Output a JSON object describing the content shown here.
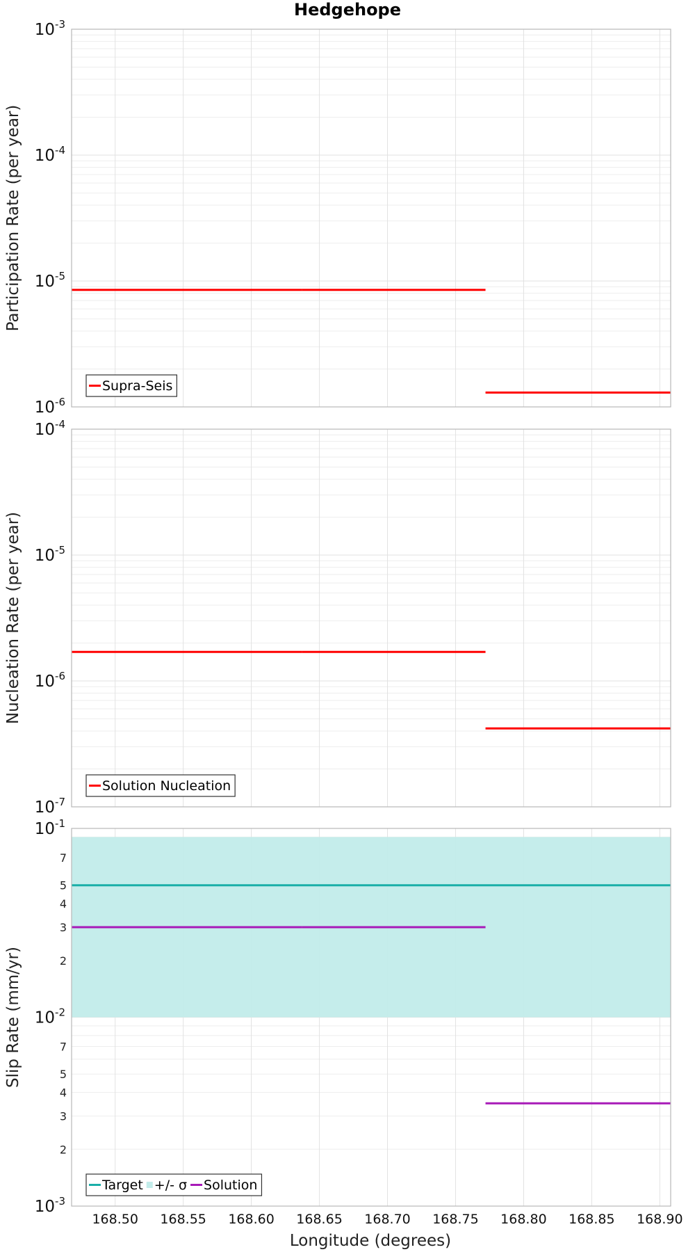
{
  "chart_data": {
    "title": "Hedgehope",
    "type": "line",
    "xlabel": "Longitude (degrees)",
    "xlim": [
      168.468,
      168.908
    ],
    "xticks": [
      "168.50",
      "168.55",
      "168.60",
      "168.65",
      "168.70",
      "168.75",
      "168.80",
      "168.85",
      "168.90"
    ],
    "panels": [
      {
        "ylabel": "Participation Rate (per year)",
        "yscale": "log",
        "ylim": [
          1e-06,
          0.001
        ],
        "yticks": [
          {
            "base": "10",
            "exp": "-3"
          },
          {
            "base": "10",
            "exp": "-4"
          },
          {
            "base": "10",
            "exp": "-5"
          },
          {
            "base": "10",
            "exp": "-6"
          }
        ],
        "minor_tick_labels": [],
        "legend": {
          "location": "bottom-left",
          "entries": [
            {
              "label": "Supra-Seis",
              "color": "#ff0000"
            }
          ]
        },
        "series": [
          {
            "name": "Supra-Seis",
            "color": "#ff0000",
            "segments": [
              {
                "x": [
                  168.468,
                  168.637
                ],
                "y": 8.5e-06
              },
              {
                "x": [
                  168.637,
                  168.772
                ],
                "y": 8.5e-06
              },
              {
                "x": [
                  168.772,
                  168.908
                ],
                "y": 1.3e-06
              }
            ]
          }
        ]
      },
      {
        "ylabel": "Nucleation Rate (per year)",
        "yscale": "log",
        "ylim": [
          1e-07,
          0.0001
        ],
        "yticks": [
          {
            "base": "10",
            "exp": "-4"
          },
          {
            "base": "10",
            "exp": "-5"
          },
          {
            "base": "10",
            "exp": "-6"
          },
          {
            "base": "10",
            "exp": "-7"
          }
        ],
        "minor_tick_labels": [],
        "legend": {
          "location": "bottom-left",
          "entries": [
            {
              "label": "Solution Nucleation",
              "color": "#ff0000"
            }
          ]
        },
        "series": [
          {
            "name": "Solution Nucleation",
            "color": "#ff0000",
            "segments": [
              {
                "x": [
                  168.468,
                  168.637
                ],
                "y": 1.7e-06
              },
              {
                "x": [
                  168.637,
                  168.772
                ],
                "y": 1.7e-06
              },
              {
                "x": [
                  168.772,
                  168.908
                ],
                "y": 4.2e-07
              }
            ]
          }
        ]
      },
      {
        "ylabel": "Slip Rate (mm/yr)",
        "yscale": "log",
        "ylim": [
          0.001,
          0.1
        ],
        "yticks": [
          {
            "base": "10",
            "exp": "-1"
          },
          {
            "base": "10",
            "exp": "-2"
          },
          {
            "base": "10",
            "exp": "-3"
          }
        ],
        "minor_tick_labels": [
          "7",
          "5",
          "4",
          "3",
          "2",
          "7",
          "5",
          "4",
          "3",
          "2"
        ],
        "legend": {
          "location": "bottom-left",
          "entries": [
            {
              "label": "Target",
              "color": "#1aaea8"
            },
            {
              "label": "+/- σ",
              "color": "#c2ecea"
            },
            {
              "label": "Solution",
              "color": "#a81ab8"
            }
          ]
        },
        "band": {
          "name": "+/- σ",
          "color": "#c2ecea",
          "x": [
            168.468,
            168.908
          ],
          "y": [
            0.01,
            0.09
          ]
        },
        "series": [
          {
            "name": "Target",
            "color": "#1aaea8",
            "segments": [
              {
                "x": [
                  168.468,
                  168.908
                ],
                "y": 0.05
              }
            ]
          },
          {
            "name": "Solution",
            "color": "#a81ab8",
            "segments": [
              {
                "x": [
                  168.468,
                  168.637
                ],
                "y": 0.03
              },
              {
                "x": [
                  168.637,
                  168.772
                ],
                "y": 0.03
              },
              {
                "x": [
                  168.772,
                  168.908
                ],
                "y": 0.0035
              }
            ]
          }
        ]
      }
    ]
  }
}
